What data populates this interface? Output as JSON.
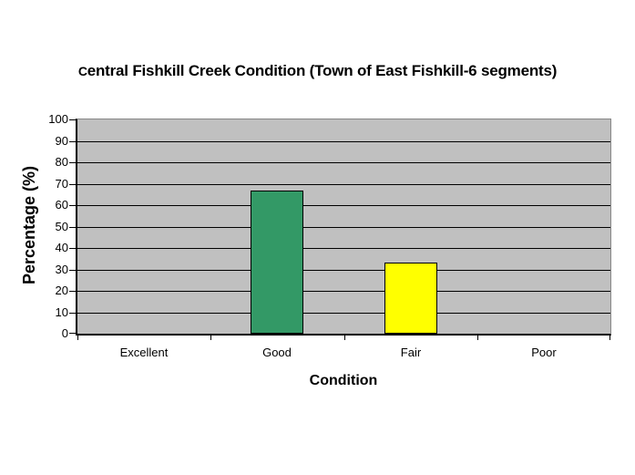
{
  "chart_data": {
    "type": "bar",
    "title": "Central Fishkill Creek Condition (Town of East Fishkill-6 segments)",
    "xlabel": "Condition",
    "ylabel": "Percentage (%)",
    "categories": [
      "Excellent",
      "Good",
      "Fair",
      "Poor"
    ],
    "values": [
      0,
      66.7,
      33.3,
      0
    ],
    "point_colors": [
      null,
      "#339966",
      "#FFFF00",
      null
    ],
    "ylim": [
      0,
      100
    ],
    "yticks": [
      0,
      10,
      20,
      30,
      40,
      50,
      60,
      70,
      80,
      90,
      100
    ],
    "grid": "horizontal",
    "legend": "none",
    "plot_bg_color": "#C0C0C0",
    "bar_border_color": "#000000",
    "gridline_color": "#000000"
  }
}
